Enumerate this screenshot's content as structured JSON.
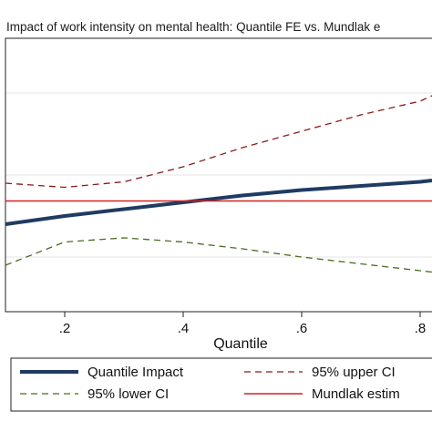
{
  "chart_data": {
    "type": "line",
    "title": "Impact of work intensity on mental health: Quantile FE vs. Mundlak e",
    "xlabel": "Quantile",
    "ylabel": "",
    "x_ticks": [
      ".2",
      ".4",
      ".6",
      ".8"
    ],
    "x_tick_values": [
      0.2,
      0.4,
      0.6,
      0.8
    ],
    "xlim": [
      0.1,
      0.82
    ],
    "ylim": [
      0,
      1
    ],
    "grid": true,
    "grid_values": [
      0.2,
      0.5,
      0.8
    ],
    "legend_position": "bottom",
    "series": [
      {
        "name": "Quantile Impact",
        "color": "#1f3b63",
        "style": "solid-thick",
        "x": [
          0.1,
          0.2,
          0.3,
          0.4,
          0.5,
          0.6,
          0.7,
          0.8,
          0.82
        ],
        "y": [
          0.32,
          0.35,
          0.375,
          0.4,
          0.425,
          0.445,
          0.46,
          0.475,
          0.48
        ]
      },
      {
        "name": "95% upper CI",
        "color": "#8b1a1a",
        "style": "dashed",
        "x": [
          0.1,
          0.2,
          0.3,
          0.4,
          0.5,
          0.6,
          0.7,
          0.8,
          0.82
        ],
        "y": [
          0.47,
          0.455,
          0.475,
          0.53,
          0.6,
          0.66,
          0.72,
          0.77,
          0.79
        ]
      },
      {
        "name": "95% lower CI",
        "color": "#4a6b1f",
        "style": "dashed",
        "x": [
          0.1,
          0.2,
          0.3,
          0.4,
          0.5,
          0.6,
          0.7,
          0.8,
          0.82
        ],
        "y": [
          0.17,
          0.255,
          0.27,
          0.255,
          0.23,
          0.2,
          0.175,
          0.15,
          0.145
        ]
      },
      {
        "name": "Mundlak estim",
        "color": "#d42020",
        "style": "solid",
        "x": [
          0.1,
          0.82
        ],
        "y": [
          0.405,
          0.405
        ]
      }
    ]
  }
}
